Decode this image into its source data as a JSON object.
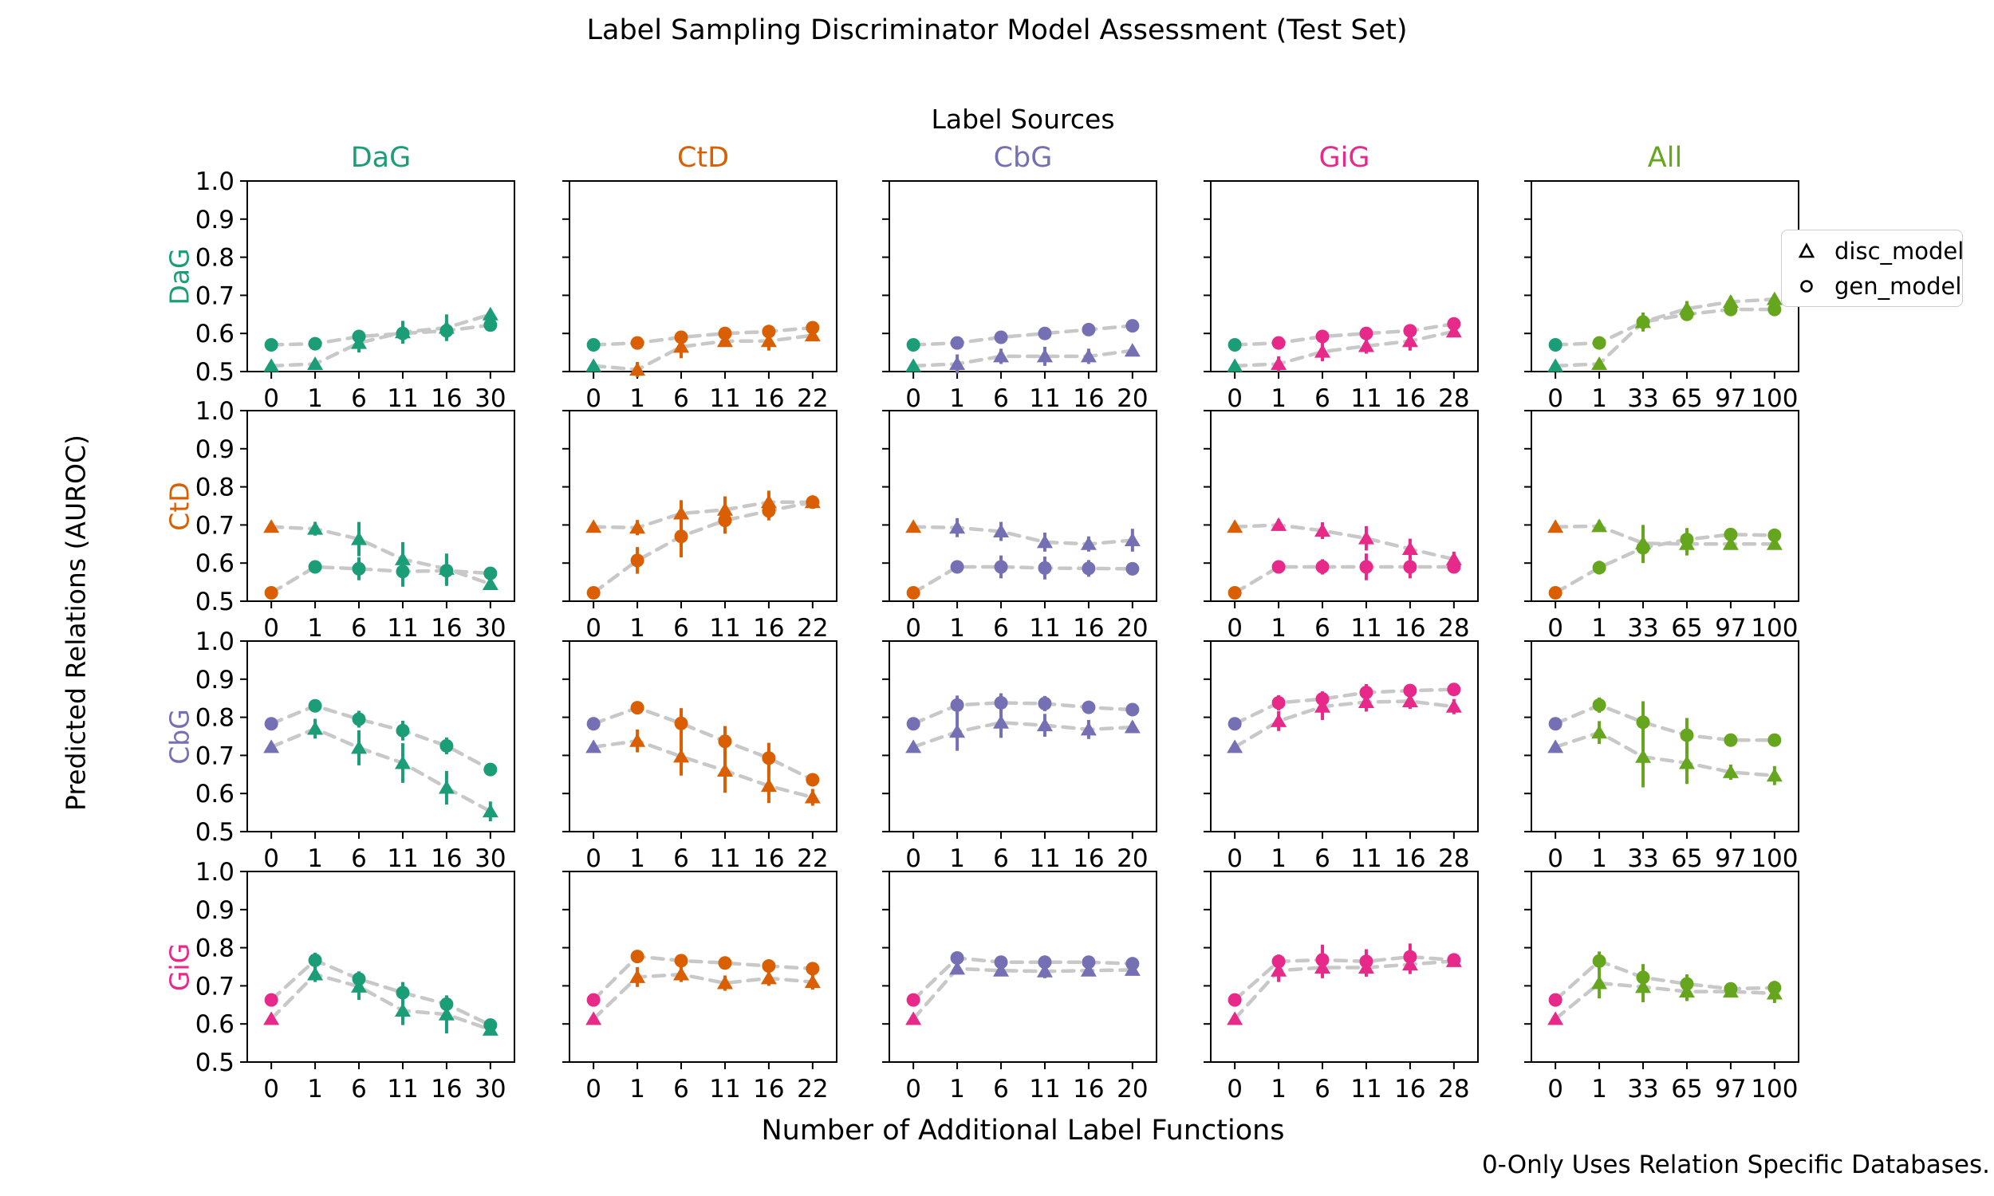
{
  "header": {
    "title": "Label Sampling Discriminator Model Assessment (Test Set)",
    "label_sources": "Label Sources"
  },
  "axes": {
    "xlabel": "Number of Additional Label Functions",
    "ylabel": "Predicted Relations (AUROC)"
  },
  "footnote": {
    "text": "0-Only Uses Relation Specific Databases."
  },
  "legend": {
    "items": [
      {
        "marker": "triangle",
        "label": "disc_model"
      },
      {
        "marker": "circle",
        "label": "gen_model"
      }
    ]
  },
  "colors": {
    "DaG": "#1b9e77",
    "CtD": "#d95f02",
    "CbG": "#7570b3",
    "GiG": "#e7298a",
    "All": "#66a61e",
    "dash_line": "#c8c8c8",
    "axis": "#000000"
  },
  "chart_data": {
    "type": "line",
    "title": "Label Sampling Discriminator Model Assessment (Test Set)",
    "xlabel": "Number of Additional Label Functions",
    "ylabel": "Predicted Relations (AUROC)",
    "ylim": [
      0.5,
      1.0
    ],
    "yticks": [
      "1.0",
      "0.9",
      "0.8",
      "0.7",
      "0.6",
      "0.5"
    ],
    "grid_rows": [
      "DaG",
      "CtD",
      "CbG",
      "GiG"
    ],
    "grid_cols": [
      "DaG",
      "CtD",
      "CbG",
      "GiG",
      "All"
    ],
    "note": "first point (x=0) uses the row relation color; remaining points use the column color",
    "cells": [
      {
        "row": "DaG",
        "col": "DaG",
        "xticks": [
          0,
          1,
          6,
          11,
          16,
          30
        ],
        "gen": {
          "y": [
            0.57,
            0.573,
            0.592,
            0.6,
            0.607,
            0.622
          ],
          "err": [
            0.005,
            0.005,
            0.012,
            0.022,
            0.02,
            0.01
          ]
        },
        "disc": {
          "y": [
            0.515,
            0.52,
            0.575,
            0.603,
            0.615,
            0.65
          ],
          "err": [
            0.004,
            0.012,
            0.025,
            0.03,
            0.035,
            0.01
          ]
        }
      },
      {
        "row": "DaG",
        "col": "CtD",
        "xticks": [
          0,
          1,
          6,
          11,
          16,
          22
        ],
        "gen": {
          "y": [
            0.57,
            0.575,
            0.59,
            0.6,
            0.605,
            0.615
          ],
          "err": [
            0.005,
            0.005,
            0.01,
            0.01,
            0.01,
            0.008
          ]
        },
        "disc": {
          "y": [
            0.515,
            0.505,
            0.565,
            0.58,
            0.58,
            0.595
          ],
          "err": [
            0.004,
            0.02,
            0.03,
            0.015,
            0.025,
            0.01
          ]
        }
      },
      {
        "row": "DaG",
        "col": "CbG",
        "xticks": [
          0,
          1,
          6,
          11,
          16,
          20
        ],
        "gen": {
          "y": [
            0.57,
            0.575,
            0.59,
            0.6,
            0.61,
            0.62
          ],
          "err": [
            0.005,
            0.005,
            0.008,
            0.008,
            0.008,
            0.008
          ]
        },
        "disc": {
          "y": [
            0.515,
            0.52,
            0.54,
            0.54,
            0.54,
            0.555
          ],
          "err": [
            0.004,
            0.025,
            0.02,
            0.025,
            0.02,
            0.01
          ]
        }
      },
      {
        "row": "DaG",
        "col": "GiG",
        "xticks": [
          0,
          1,
          6,
          11,
          16,
          28
        ],
        "gen": {
          "y": [
            0.57,
            0.575,
            0.592,
            0.6,
            0.607,
            0.625
          ],
          "err": [
            0.005,
            0.005,
            0.01,
            0.01,
            0.01,
            0.008
          ]
        },
        "disc": {
          "y": [
            0.515,
            0.52,
            0.552,
            0.567,
            0.58,
            0.605
          ],
          "err": [
            0.004,
            0.02,
            0.025,
            0.02,
            0.025,
            0.012
          ]
        }
      },
      {
        "row": "DaG",
        "col": "All",
        "xticks": [
          0,
          1,
          33,
          65,
          97,
          100
        ],
        "gen": {
          "y": [
            0.57,
            0.575,
            0.63,
            0.65,
            0.663,
            0.663
          ],
          "err": [
            0.005,
            0.01,
            0.01,
            0.015,
            0.012,
            0.01
          ]
        },
        "disc": {
          "y": [
            0.515,
            0.52,
            0.63,
            0.665,
            0.683,
            0.69
          ],
          "err": [
            0.004,
            0.01,
            0.025,
            0.02,
            0.015,
            0.012
          ]
        }
      },
      {
        "row": "CtD",
        "col": "DaG",
        "xticks": [
          0,
          1,
          6,
          11,
          16,
          30
        ],
        "gen": {
          "y": [
            0.522,
            0.59,
            0.585,
            0.578,
            0.58,
            0.573
          ],
          "err": [
            0.004,
            0.008,
            0.03,
            0.04,
            0.04,
            0.012
          ]
        },
        "disc": {
          "y": [
            0.695,
            0.69,
            0.663,
            0.61,
            0.585,
            0.545
          ],
          "err": [
            0.005,
            0.018,
            0.045,
            0.045,
            0.04,
            0.015
          ]
        }
      },
      {
        "row": "CtD",
        "col": "CtD",
        "xticks": [
          0,
          1,
          6,
          11,
          16,
          22
        ],
        "gen": {
          "y": [
            0.522,
            0.607,
            0.67,
            0.712,
            0.737,
            0.76
          ],
          "err": [
            0.004,
            0.035,
            0.055,
            0.035,
            0.025,
            0.012
          ]
        },
        "disc": {
          "y": [
            0.695,
            0.693,
            0.73,
            0.74,
            0.76,
            0.76
          ],
          "err": [
            0.005,
            0.02,
            0.035,
            0.035,
            0.03,
            0.01
          ]
        }
      },
      {
        "row": "CtD",
        "col": "CbG",
        "xticks": [
          0,
          1,
          6,
          11,
          16,
          20
        ],
        "gen": {
          "y": [
            0.522,
            0.59,
            0.59,
            0.587,
            0.586,
            0.585
          ],
          "err": [
            0.004,
            0.01,
            0.03,
            0.03,
            0.022,
            0.01
          ]
        },
        "disc": {
          "y": [
            0.695,
            0.693,
            0.683,
            0.655,
            0.65,
            0.66
          ],
          "err": [
            0.005,
            0.025,
            0.025,
            0.025,
            0.02,
            0.03
          ]
        }
      },
      {
        "row": "CtD",
        "col": "GiG",
        "xticks": [
          0,
          1,
          6,
          11,
          16,
          28
        ],
        "gen": {
          "y": [
            0.522,
            0.59,
            0.59,
            0.59,
            0.59,
            0.59
          ],
          "err": [
            0.004,
            0.008,
            0.02,
            0.035,
            0.03,
            0.01
          ]
        },
        "disc": {
          "y": [
            0.695,
            0.7,
            0.685,
            0.665,
            0.637,
            0.61
          ],
          "err": [
            0.005,
            0.015,
            0.022,
            0.032,
            0.027,
            0.02
          ]
        }
      },
      {
        "row": "CtD",
        "col": "All",
        "xticks": [
          0,
          1,
          33,
          65,
          97,
          100
        ],
        "gen": {
          "y": [
            0.522,
            0.588,
            0.64,
            0.662,
            0.675,
            0.673
          ],
          "err": [
            0.004,
            0.018,
            0.04,
            0.03,
            0.012,
            0.012
          ]
        },
        "disc": {
          "y": [
            0.695,
            0.697,
            0.652,
            0.65,
            0.65,
            0.65
          ],
          "err": [
            0.005,
            0.015,
            0.048,
            0.03,
            0.012,
            0.012
          ]
        }
      },
      {
        "row": "CbG",
        "col": "DaG",
        "xticks": [
          0,
          1,
          6,
          11,
          16,
          30
        ],
        "gen": {
          "y": [
            0.783,
            0.83,
            0.795,
            0.765,
            0.725,
            0.663
          ],
          "err": [
            0.005,
            0.012,
            0.022,
            0.026,
            0.022,
            0.012
          ]
        },
        "disc": {
          "y": [
            0.722,
            0.77,
            0.72,
            0.68,
            0.615,
            0.553
          ],
          "err": [
            0.005,
            0.026,
            0.046,
            0.052,
            0.044,
            0.026
          ]
        }
      },
      {
        "row": "CbG",
        "col": "CtD",
        "xticks": [
          0,
          1,
          6,
          11,
          16,
          22
        ],
        "gen": {
          "y": [
            0.783,
            0.825,
            0.784,
            0.737,
            0.693,
            0.636
          ],
          "err": [
            0.005,
            0.012,
            0.04,
            0.04,
            0.04,
            0.015
          ]
        },
        "disc": {
          "y": [
            0.722,
            0.738,
            0.697,
            0.66,
            0.62,
            0.59
          ],
          "err": [
            0.005,
            0.03,
            0.05,
            0.058,
            0.045,
            0.022
          ]
        }
      },
      {
        "row": "CbG",
        "col": "CbG",
        "xticks": [
          0,
          1,
          6,
          11,
          16,
          20
        ],
        "gen": {
          "y": [
            0.783,
            0.832,
            0.838,
            0.836,
            0.826,
            0.82
          ],
          "err": [
            0.005,
            0.025,
            0.025,
            0.02,
            0.015,
            0.01
          ]
        },
        "disc": {
          "y": [
            0.722,
            0.762,
            0.786,
            0.779,
            0.768,
            0.774
          ],
          "err": [
            0.005,
            0.05,
            0.04,
            0.03,
            0.025,
            0.015
          ]
        }
      },
      {
        "row": "CbG",
        "col": "GiG",
        "xticks": [
          0,
          1,
          6,
          11,
          16,
          28
        ],
        "gen": {
          "y": [
            0.783,
            0.838,
            0.848,
            0.865,
            0.87,
            0.873
          ],
          "err": [
            0.005,
            0.02,
            0.02,
            0.022,
            0.015,
            0.012
          ]
        },
        "disc": {
          "y": [
            0.722,
            0.79,
            0.828,
            0.84,
            0.842,
            0.828
          ],
          "err": [
            0.005,
            0.026,
            0.035,
            0.025,
            0.02,
            0.02
          ]
        }
      },
      {
        "row": "CbG",
        "col": "All",
        "xticks": [
          0,
          1,
          33,
          65,
          97,
          100
        ],
        "gen": {
          "y": [
            0.783,
            0.832,
            0.787,
            0.753,
            0.74,
            0.74
          ],
          "err": [
            0.005,
            0.02,
            0.055,
            0.045,
            0.012,
            0.012
          ]
        },
        "disc": {
          "y": [
            0.722,
            0.76,
            0.696,
            0.68,
            0.656,
            0.647
          ],
          "err": [
            0.005,
            0.03,
            0.08,
            0.055,
            0.02,
            0.025
          ]
        }
      },
      {
        "row": "GiG",
        "col": "DaG",
        "xticks": [
          0,
          1,
          6,
          11,
          16,
          30
        ],
        "gen": {
          "y": [
            0.663,
            0.767,
            0.718,
            0.682,
            0.652,
            0.597
          ],
          "err": [
            0.005,
            0.02,
            0.02,
            0.028,
            0.022,
            0.012
          ]
        },
        "disc": {
          "y": [
            0.613,
            0.73,
            0.698,
            0.635,
            0.625,
            0.585
          ],
          "err": [
            0.005,
            0.02,
            0.035,
            0.038,
            0.05,
            0.012
          ]
        }
      },
      {
        "row": "GiG",
        "col": "CtD",
        "xticks": [
          0,
          1,
          6,
          11,
          16,
          22
        ],
        "gen": {
          "y": [
            0.663,
            0.777,
            0.766,
            0.76,
            0.752,
            0.745
          ],
          "err": [
            0.005,
            0.01,
            0.012,
            0.012,
            0.012,
            0.012
          ]
        },
        "disc": {
          "y": [
            0.613,
            0.723,
            0.73,
            0.707,
            0.72,
            0.71
          ],
          "err": [
            0.005,
            0.026,
            0.02,
            0.02,
            0.02,
            0.02
          ]
        }
      },
      {
        "row": "GiG",
        "col": "CbG",
        "xticks": [
          0,
          1,
          6,
          11,
          16,
          20
        ],
        "gen": {
          "y": [
            0.663,
            0.773,
            0.762,
            0.762,
            0.762,
            0.758
          ],
          "err": [
            0.005,
            0.012,
            0.012,
            0.012,
            0.012,
            0.01
          ]
        },
        "disc": {
          "y": [
            0.613,
            0.745,
            0.74,
            0.738,
            0.74,
            0.742
          ],
          "err": [
            0.005,
            0.015,
            0.015,
            0.018,
            0.015,
            0.012
          ]
        }
      },
      {
        "row": "GiG",
        "col": "GiG",
        "xticks": [
          0,
          1,
          6,
          11,
          16,
          28
        ],
        "gen": {
          "y": [
            0.663,
            0.764,
            0.768,
            0.764,
            0.776,
            0.768
          ],
          "err": [
            0.005,
            0.018,
            0.04,
            0.032,
            0.035,
            0.012
          ]
        },
        "disc": {
          "y": [
            0.613,
            0.74,
            0.748,
            0.748,
            0.756,
            0.765
          ],
          "err": [
            0.005,
            0.03,
            0.028,
            0.024,
            0.025,
            0.012
          ]
        }
      },
      {
        "row": "GiG",
        "col": "All",
        "xticks": [
          0,
          1,
          33,
          65,
          97,
          100
        ],
        "gen": {
          "y": [
            0.663,
            0.765,
            0.722,
            0.705,
            0.692,
            0.695
          ],
          "err": [
            0.005,
            0.025,
            0.035,
            0.025,
            0.015,
            0.018
          ]
        },
        "disc": {
          "y": [
            0.613,
            0.707,
            0.697,
            0.685,
            0.685,
            0.68
          ],
          "err": [
            0.005,
            0.04,
            0.04,
            0.025,
            0.012,
            0.025
          ]
        }
      }
    ]
  }
}
